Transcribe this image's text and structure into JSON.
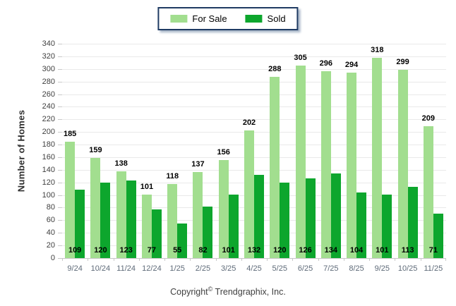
{
  "colors": {
    "for_sale": "#a2de8f",
    "sold": "#0da62d",
    "grid": "#e9e9e9",
    "axis": "#c6c6c6",
    "legend_border": "#1f3b63",
    "x_tick_text": "#5e6a78",
    "y_tick_text": "#3f3f3f"
  },
  "chart_data": {
    "type": "bar",
    "title": "",
    "categories": [
      "9/24",
      "10/24",
      "11/24",
      "12/24",
      "1/25",
      "2/25",
      "3/25",
      "4/25",
      "5/25",
      "6/25",
      "7/25",
      "8/25",
      "9/25",
      "10/25",
      "11/25"
    ],
    "series": [
      {
        "name": "For Sale",
        "color": "#a2de8f",
        "values": [
          185,
          159,
          138,
          101,
          118,
          137,
          156,
          202,
          288,
          305,
          296,
          294,
          318,
          299,
          209
        ]
      },
      {
        "name": "Sold",
        "color": "#0da62d",
        "values": [
          109,
          120,
          123,
          77,
          55,
          82,
          101,
          132,
          120,
          126,
          134,
          104,
          101,
          113,
          71
        ]
      }
    ],
    "xlabel": "",
    "ylabel": "Number of Homes",
    "ylim": [
      0,
      340
    ],
    "ytick_step": 20,
    "grid": "horizontal",
    "legend_position": "top-center"
  },
  "footer": {
    "copyright_prefix": "Copyright",
    "copyright_symbol": "©",
    "copyright_suffix": "Trendgraphix, Inc."
  }
}
